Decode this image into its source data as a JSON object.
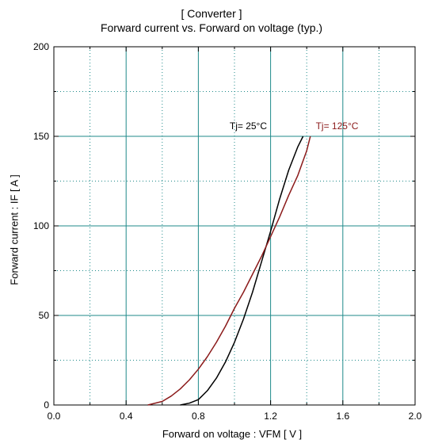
{
  "chart_data": {
    "type": "line",
    "title": "[ Converter ]",
    "subtitle": "Forward current  vs.  Forward on voltage  (typ.)",
    "xlabel": "Forward on voltage  :  VFM  [ V ]",
    "ylabel": "Forward current  :  IF  [ A ]",
    "xlim": [
      0.0,
      2.0
    ],
    "ylim": [
      0,
      200
    ],
    "x_ticks": [
      "0.0",
      "0.4",
      "0.8",
      "1.2",
      "1.6",
      "2.0"
    ],
    "y_ticks": [
      "0",
      "50",
      "100",
      "150",
      "200"
    ],
    "grid": true,
    "series": [
      {
        "name": "Tj= 25°C",
        "color": "#000000",
        "x": [
          0.7,
          0.75,
          0.8,
          0.85,
          0.9,
          0.95,
          1.0,
          1.05,
          1.1,
          1.15,
          1.2,
          1.25,
          1.3,
          1.35,
          1.38
        ],
        "y": [
          0,
          1,
          3,
          8,
          15,
          24,
          35,
          48,
          63,
          80,
          97,
          115,
          131,
          144,
          150
        ]
      },
      {
        "name": "Tj= 125°C",
        "color": "#8b1a1a",
        "x": [
          0.52,
          0.6,
          0.65,
          0.7,
          0.75,
          0.8,
          0.85,
          0.9,
          0.95,
          1.0,
          1.05,
          1.1,
          1.15,
          1.2,
          1.25,
          1.3,
          1.35,
          1.4,
          1.42
        ],
        "y": [
          0,
          2,
          5,
          9,
          14,
          20,
          27,
          35,
          44,
          54,
          63,
          73,
          83,
          94,
          105,
          117,
          128,
          142,
          150
        ]
      }
    ],
    "annotations": [
      {
        "text": "Tj= 25°C",
        "x": 1.18,
        "y": 154,
        "color": "#000000"
      },
      {
        "text": "Tj= 125°C",
        "x": 1.45,
        "y": 154,
        "color": "#8b1a1a"
      }
    ]
  }
}
